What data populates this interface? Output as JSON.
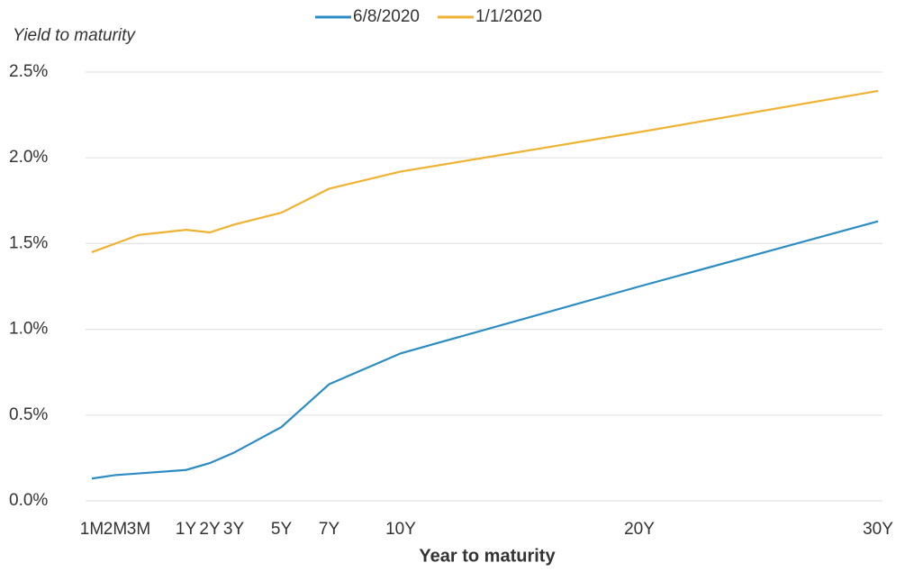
{
  "chart_data": {
    "type": "line",
    "y_label": "Yield to maturity",
    "x_label": "Year to maturity",
    "categories": [
      "1M",
      "2M",
      "3M",
      "1Y",
      "2Y",
      "3Y",
      "5Y",
      "7Y",
      "10Y",
      "20Y",
      "30Y"
    ],
    "x": [
      0.0833,
      0.1667,
      0.25,
      1,
      2,
      3,
      5,
      7,
      10,
      20,
      30
    ],
    "series": [
      {
        "name": "6/8/2020",
        "color": "#2b8cc4",
        "values": [
          0.13,
          0.15,
          0.16,
          0.18,
          0.22,
          0.28,
          0.43,
          0.68,
          0.86,
          1.25,
          1.63
        ]
      },
      {
        "name": "1/1/2020",
        "color": "#f0b232",
        "values": [
          1.45,
          1.5,
          1.55,
          1.58,
          1.565,
          1.61,
          1.68,
          1.82,
          1.92,
          2.15,
          2.39
        ]
      }
    ],
    "ylim": [
      0,
      2.5
    ],
    "yticks": [
      {
        "value": 0,
        "label": "0.0%"
      },
      {
        "value": 0.5,
        "label": "0.5%"
      },
      {
        "value": 1,
        "label": "1.0%"
      },
      {
        "value": 1.5,
        "label": "1.5%"
      },
      {
        "value": 2,
        "label": "2.0%"
      },
      {
        "value": 2.5,
        "label": "2.5%"
      }
    ],
    "grid": true,
    "legend": "top"
  }
}
